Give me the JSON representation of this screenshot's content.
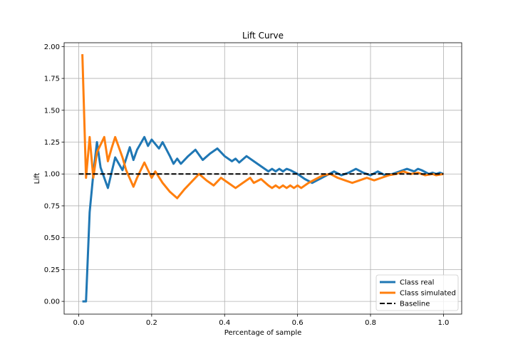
{
  "chart_data": {
    "type": "line",
    "title": "Lift Curve",
    "xlabel": "Percentage of sample",
    "ylabel": "Lift",
    "xlim": [
      -0.04,
      1.05
    ],
    "ylim": [
      -0.1,
      2.03
    ],
    "x_ticks": [
      0.0,
      0.2,
      0.4,
      0.6,
      0.8,
      1.0
    ],
    "x_tick_labels": [
      "0.0",
      "0.2",
      "0.4",
      "0.6",
      "0.8",
      "1.0"
    ],
    "y_ticks": [
      0.0,
      0.25,
      0.5,
      0.75,
      1.0,
      1.25,
      1.5,
      1.75,
      2.0
    ],
    "y_tick_labels": [
      "0.00",
      "0.25",
      "0.50",
      "0.75",
      "1.00",
      "1.25",
      "1.50",
      "1.75",
      "2.00"
    ],
    "grid": true,
    "legend_position": "bottom-right",
    "series": [
      {
        "name": "Class real",
        "color": "#1f77b4",
        "style": "solid",
        "points": [
          [
            0.01,
            0.0
          ],
          [
            0.02,
            0.0
          ],
          [
            0.03,
            0.7
          ],
          [
            0.04,
            1.0
          ],
          [
            0.05,
            1.25
          ],
          [
            0.06,
            1.05
          ],
          [
            0.08,
            0.89
          ],
          [
            0.09,
            1.01
          ],
          [
            0.1,
            1.13
          ],
          [
            0.12,
            1.03
          ],
          [
            0.14,
            1.21
          ],
          [
            0.15,
            1.11
          ],
          [
            0.16,
            1.19
          ],
          [
            0.18,
            1.29
          ],
          [
            0.19,
            1.22
          ],
          [
            0.2,
            1.27
          ],
          [
            0.22,
            1.2
          ],
          [
            0.23,
            1.25
          ],
          [
            0.25,
            1.14
          ],
          [
            0.26,
            1.08
          ],
          [
            0.27,
            1.12
          ],
          [
            0.28,
            1.08
          ],
          [
            0.3,
            1.14
          ],
          [
            0.32,
            1.19
          ],
          [
            0.34,
            1.11
          ],
          [
            0.36,
            1.16
          ],
          [
            0.38,
            1.2
          ],
          [
            0.4,
            1.14
          ],
          [
            0.42,
            1.1
          ],
          [
            0.43,
            1.12
          ],
          [
            0.44,
            1.09
          ],
          [
            0.46,
            1.14
          ],
          [
            0.48,
            1.1
          ],
          [
            0.5,
            1.06
          ],
          [
            0.52,
            1.02
          ],
          [
            0.53,
            1.04
          ],
          [
            0.54,
            1.02
          ],
          [
            0.55,
            1.04
          ],
          [
            0.56,
            1.02
          ],
          [
            0.57,
            1.04
          ],
          [
            0.58,
            1.03
          ],
          [
            0.6,
            1.0
          ],
          [
            0.62,
            0.96
          ],
          [
            0.64,
            0.93
          ],
          [
            0.66,
            0.96
          ],
          [
            0.68,
            0.99
          ],
          [
            0.7,
            1.02
          ],
          [
            0.72,
            0.99
          ],
          [
            0.74,
            1.01
          ],
          [
            0.76,
            1.04
          ],
          [
            0.78,
            1.01
          ],
          [
            0.8,
            0.99
          ],
          [
            0.82,
            1.02
          ],
          [
            0.84,
            0.99
          ],
          [
            0.86,
            1.0
          ],
          [
            0.88,
            1.02
          ],
          [
            0.9,
            1.04
          ],
          [
            0.92,
            1.02
          ],
          [
            0.93,
            1.04
          ],
          [
            0.94,
            1.03
          ],
          [
            0.96,
            1.0
          ],
          [
            0.97,
            1.01
          ],
          [
            0.98,
            1.0
          ],
          [
            0.99,
            1.01
          ],
          [
            1.0,
            1.0
          ]
        ]
      },
      {
        "name": "Class simulated",
        "color": "#ff7f0e",
        "style": "solid",
        "points": [
          [
            0.01,
            1.94
          ],
          [
            0.02,
            0.97
          ],
          [
            0.03,
            1.29
          ],
          [
            0.04,
            0.97
          ],
          [
            0.05,
            1.17
          ],
          [
            0.07,
            1.29
          ],
          [
            0.08,
            1.1
          ],
          [
            0.09,
            1.2
          ],
          [
            0.1,
            1.29
          ],
          [
            0.12,
            1.13
          ],
          [
            0.13,
            1.03
          ],
          [
            0.15,
            0.9
          ],
          [
            0.16,
            0.97
          ],
          [
            0.18,
            1.09
          ],
          [
            0.2,
            0.97
          ],
          [
            0.21,
            1.02
          ],
          [
            0.23,
            0.93
          ],
          [
            0.25,
            0.86
          ],
          [
            0.27,
            0.81
          ],
          [
            0.29,
            0.88
          ],
          [
            0.31,
            0.94
          ],
          [
            0.33,
            1.0
          ],
          [
            0.35,
            0.95
          ],
          [
            0.37,
            0.91
          ],
          [
            0.39,
            0.97
          ],
          [
            0.41,
            0.93
          ],
          [
            0.43,
            0.89
          ],
          [
            0.45,
            0.93
          ],
          [
            0.47,
            0.97
          ],
          [
            0.48,
            0.93
          ],
          [
            0.5,
            0.96
          ],
          [
            0.52,
            0.91
          ],
          [
            0.53,
            0.89
          ],
          [
            0.54,
            0.91
          ],
          [
            0.55,
            0.89
          ],
          [
            0.56,
            0.91
          ],
          [
            0.57,
            0.89
          ],
          [
            0.58,
            0.91
          ],
          [
            0.59,
            0.89
          ],
          [
            0.6,
            0.91
          ],
          [
            0.61,
            0.89
          ],
          [
            0.63,
            0.93
          ],
          [
            0.65,
            0.96
          ],
          [
            0.67,
            0.99
          ],
          [
            0.69,
            1.0
          ],
          [
            0.71,
            0.97
          ],
          [
            0.73,
            0.95
          ],
          [
            0.75,
            0.93
          ],
          [
            0.77,
            0.95
          ],
          [
            0.79,
            0.97
          ],
          [
            0.81,
            0.95
          ],
          [
            0.83,
            0.97
          ],
          [
            0.85,
            0.99
          ],
          [
            0.87,
            1.0
          ],
          [
            0.89,
            1.02
          ],
          [
            0.91,
            1.0
          ],
          [
            0.93,
            1.01
          ],
          [
            0.95,
            0.99
          ],
          [
            0.97,
            1.0
          ],
          [
            0.98,
            0.99
          ],
          [
            1.0,
            1.0
          ]
        ]
      },
      {
        "name": "Baseline",
        "color": "#000000",
        "style": "dashed",
        "points": [
          [
            0.0,
            1.0
          ],
          [
            1.0,
            1.0
          ]
        ]
      }
    ]
  }
}
